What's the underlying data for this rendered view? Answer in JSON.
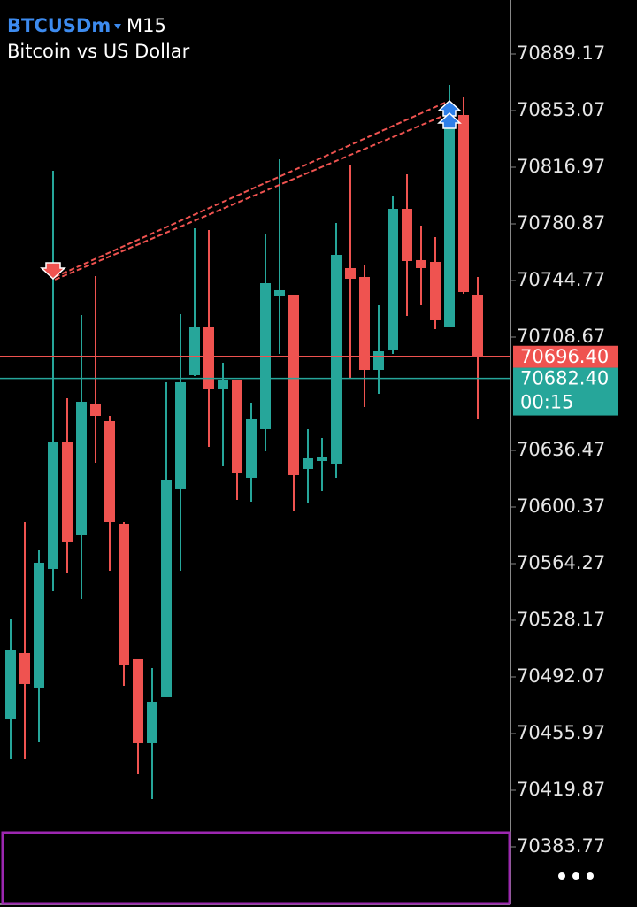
{
  "chart_data": {
    "type": "candlestick",
    "title": "BTCUSDm",
    "timeframe": "M15",
    "subtitle": "Bitcoin vs US Dollar",
    "up_color": "#26a69a",
    "down_color": "#ef5350",
    "open": [
      70465.56,
      70507.3,
      70485.31,
      70560.89,
      70641.55,
      70582.32,
      70666.37,
      70655.09,
      70589.66,
      70503.36,
      70449.77,
      70479.1,
      70611.66,
      70684.42,
      70715.44,
      70675.39,
      70681.03,
      70618.99,
      70650.01,
      70735.18,
      70735.75,
      70624.63,
      70629.7,
      70628.01,
      70752.67,
      70747.03,
      70687.8,
      70700.78,
      70790.46,
      70757.75,
      70756.62,
      70714.88,
      70850.25,
      70735.75
    ],
    "high": [
      70528.74,
      70590.78,
      70572.73,
      70814.72,
      70669.75,
      70722.77,
      70747.59,
      70658.47,
      70590.78,
      70503.36,
      70497.71,
      70679.91,
      70723.34,
      70778.05,
      70776.92,
      70692.32,
      70681.03,
      70666.93,
      70774.67,
      70822.05,
      70735.75,
      70650.01,
      70644.37,
      70781.44,
      70818.1,
      70754.36,
      70728.98,
      70798.36,
      70812.46,
      70779.74,
      70772.41,
      70869.43,
      70861.53,
      70747.03
    ],
    "low": [
      70439.62,
      70439.62,
      70450.9,
      70546.79,
      70558.07,
      70541.71,
      70628.58,
      70559.76,
      70486.43,
      70430.03,
      70414.23,
      70479.1,
      70559.76,
      70683.85,
      70638.73,
      70626.32,
      70604.89,
      70603.76,
      70635.91,
      70697.96,
      70597.55,
      70603.19,
      70610.53,
      70618.99,
      70682.16,
      70664.11,
      70672.57,
      70697.96,
      70722.21,
      70728.98,
      70713.75,
      70714.88,
      70736.31,
      70656.78
    ],
    "close": [
      70509.0,
      70487.56,
      70564.84,
      70641.55,
      70578.38,
      70667.5,
      70658.47,
      70590.78,
      70499.41,
      70449.77,
      70476.28,
      70617.3,
      70679.91,
      70715.44,
      70675.39,
      70681.03,
      70621.81,
      70656.78,
      70743.08,
      70738.57,
      70620.68,
      70631.4,
      70631.96,
      70761.13,
      70745.9,
      70687.8,
      70699.65,
      70790.46,
      70757.18,
      70752.67,
      70719.39,
      70844.61,
      70737.44,
      70696.4
    ],
    "ylim": [
      70348.23,
      70923.58
    ],
    "yticks": [
      70889.17,
      70853.07,
      70816.97,
      70780.87,
      70744.77,
      70708.67,
      70636.47,
      70600.37,
      70564.27,
      70528.17,
      70492.07,
      70455.97,
      70419.87,
      70383.77
    ],
    "bid": {
      "value": 70696.4,
      "label": "70696.40"
    },
    "ask": {
      "value": 70682.4,
      "label": "70682.40"
    },
    "countdown": "00:15"
  }
}
